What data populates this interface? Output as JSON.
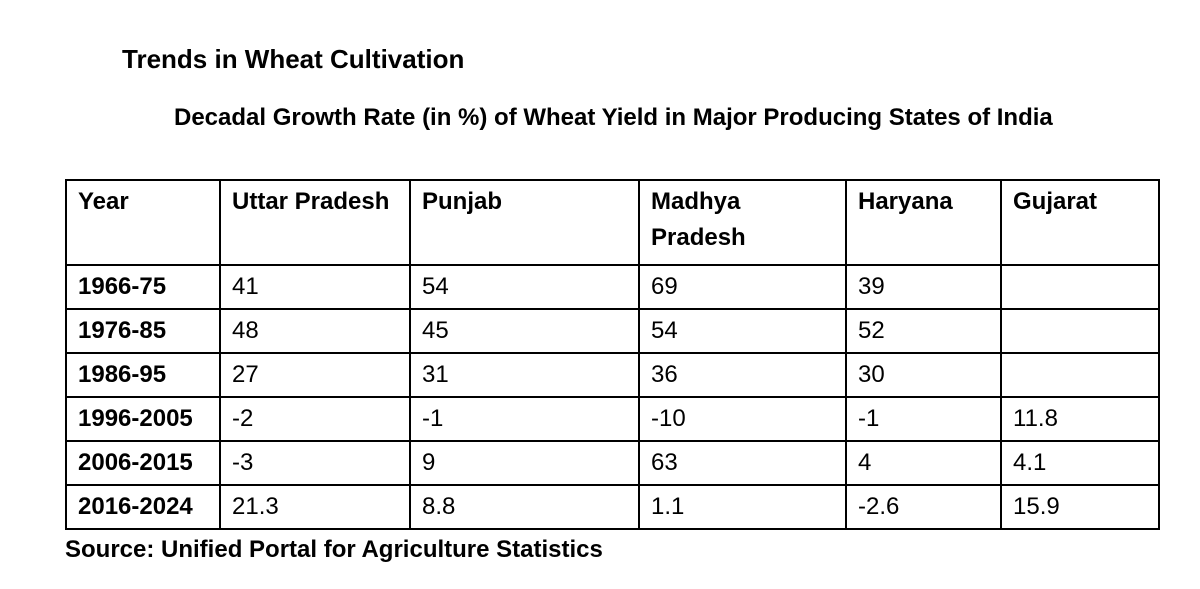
{
  "heading": "Trends in Wheat Cultivation",
  "subtitle": "Decadal Growth Rate (in %) of Wheat Yield in Major Producing States of India",
  "table": {
    "headers": [
      "Year",
      "Uttar Pradesh",
      "Punjab",
      "Madhya Pradesh",
      "Haryana",
      "Gujarat"
    ],
    "rows": [
      {
        "year": "1966-75",
        "values": [
          "41",
          "54",
          "69",
          "39",
          ""
        ]
      },
      {
        "year": "1976-85",
        "values": [
          "48",
          "45",
          "54",
          "52",
          ""
        ]
      },
      {
        "year": "1986-95",
        "values": [
          "27",
          "31",
          "36",
          "30",
          ""
        ]
      },
      {
        "year": "1996-2005",
        "values": [
          "-2",
          "-1",
          "-10",
          "-1",
          "11.8"
        ]
      },
      {
        "year": "2006-2015",
        "values": [
          "-3",
          "9",
          "63",
          "4",
          "4.1"
        ]
      },
      {
        "year": "2016-2024",
        "values": [
          "21.3",
          "8.8",
          "1.1",
          "-2.6",
          "15.9"
        ]
      }
    ]
  },
  "source": "Source: Unified Portal for Agriculture Statistics"
}
